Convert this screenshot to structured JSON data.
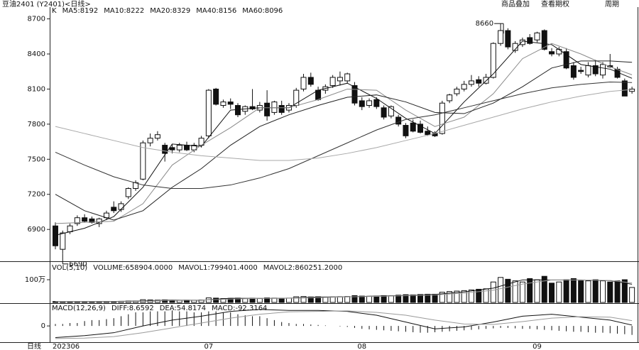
{
  "header": {
    "title": "豆油2401 (Y2401)<日线>",
    "buttons": [
      "商品叠加",
      "查看期权",
      "周期"
    ]
  },
  "period_label": "日线",
  "chart_data": [
    {
      "type": "candlestick",
      "label": "K",
      "categories": [
        "202306",
        null,
        null,
        null,
        null,
        null,
        null,
        null,
        null,
        null,
        null,
        null,
        null,
        null,
        null,
        null,
        null,
        null,
        null,
        null,
        null,
        "07",
        null,
        null,
        null,
        null,
        null,
        null,
        null,
        null,
        null,
        null,
        null,
        null,
        null,
        null,
        null,
        null,
        null,
        null,
        null,
        null,
        "08",
        null,
        null,
        null,
        null,
        null,
        null,
        null,
        null,
        null,
        null,
        null,
        null,
        null,
        null,
        null,
        null,
        null,
        null,
        null,
        null,
        null,
        null,
        null,
        "09",
        null,
        null,
        null,
        null,
        null,
        null,
        null,
        null,
        null,
        null,
        null,
        null,
        null
      ],
      "open": [
        6930,
        6730,
        6880,
        6950,
        7000,
        6990,
        6950,
        7000,
        7090,
        7070,
        7180,
        7250,
        7330,
        7640,
        7680,
        7620,
        7600,
        7580,
        7620,
        7580,
        7620,
        7700,
        8100,
        7960,
        7990,
        7960,
        7910,
        7950,
        7920,
        7980,
        7900,
        7960,
        7920,
        7960,
        8100,
        8200,
        8090,
        8090,
        8130,
        8170,
        8170,
        8130,
        8000,
        7960,
        8010,
        7940,
        7870,
        7860,
        7790,
        7810,
        7800,
        7740,
        7720,
        7720,
        8000,
        8060,
        8100,
        8140,
        8180,
        8150,
        8200,
        8490,
        8600,
        8430,
        8480,
        8540,
        8520,
        8600,
        8420,
        8400,
        8420,
        8300,
        8260,
        8220,
        8300,
        8220,
        8300,
        8270,
        8170,
        8080
      ],
      "high": [
        6960,
        6890,
        6950,
        7020,
        7030,
        7010,
        7000,
        7060,
        7140,
        7140,
        7260,
        7320,
        7660,
        7720,
        7740,
        7640,
        7630,
        7640,
        7650,
        7640,
        7700,
        8100,
        8110,
        8010,
        8020,
        7980,
        7960,
        8100,
        7990,
        8090,
        8000,
        8000,
        7980,
        8110,
        8230,
        8240,
        8120,
        8140,
        8220,
        8250,
        8240,
        8160,
        8030,
        8020,
        8030,
        7960,
        7960,
        7880,
        7810,
        7840,
        7830,
        7780,
        7740,
        8000,
        8060,
        8120,
        8170,
        8220,
        8210,
        8230,
        8500,
        8660,
        8620,
        8510,
        8540,
        8570,
        8590,
        8610,
        8450,
        8460,
        8450,
        8330,
        8290,
        8330,
        8350,
        8330,
        8400,
        8290,
        8190,
        8120
      ],
      "low": [
        6730,
        6690,
        6860,
        6930,
        6960,
        6950,
        6920,
        6980,
        7040,
        7050,
        7160,
        7230,
        7320,
        7610,
        7660,
        7480,
        7550,
        7560,
        7570,
        7560,
        7600,
        7680,
        7960,
        7940,
        7930,
        7860,
        7880,
        7920,
        7900,
        7830,
        7880,
        7880,
        7900,
        7940,
        8080,
        8120,
        8000,
        8060,
        8110,
        8130,
        8150,
        7960,
        7920,
        7940,
        7930,
        7840,
        7850,
        7780,
        7680,
        7730,
        7720,
        7700,
        7690,
        7710,
        7980,
        8040,
        8080,
        8120,
        8120,
        8140,
        8190,
        8470,
        8440,
        8410,
        8460,
        8480,
        8500,
        8430,
        8380,
        8380,
        8270,
        8180,
        8230,
        8200,
        8210,
        8190,
        8280,
        8190,
        8040,
        8060
      ],
      "close": [
        6760,
        6870,
        6930,
        7000,
        6970,
        6960,
        6990,
        7040,
        7060,
        7120,
        7250,
        7300,
        7640,
        7680,
        7710,
        7550,
        7580,
        7620,
        7580,
        7620,
        7680,
        8090,
        7970,
        7990,
        7970,
        7880,
        7950,
        7930,
        7960,
        7870,
        7990,
        7900,
        7960,
        8090,
        8200,
        8140,
        8010,
        8120,
        8200,
        8200,
        8230,
        7980,
        7950,
        8000,
        7950,
        7860,
        7950,
        7800,
        7700,
        7740,
        7730,
        7710,
        7700,
        7980,
        8050,
        8100,
        8140,
        8170,
        8150,
        8200,
        8490,
        8600,
        8460,
        8490,
        8520,
        8490,
        8580,
        8440,
        8400,
        8440,
        8280,
        8200,
        8250,
        8300,
        8230,
        8310,
        8290,
        8200,
        8040,
        8100
      ],
      "up_color": "#ffffff",
      "down_color": "#111111",
      "series": [
        {
          "name": "MA5:8192",
          "color": "#111111",
          "x": [
            0,
            4,
            8,
            12,
            16,
            20,
            24,
            28,
            32,
            36,
            40,
            44,
            48,
            52,
            56,
            60,
            64,
            68,
            72,
            76,
            79
          ],
          "values": [
            6850,
            6910,
            7010,
            7260,
            7630,
            7610,
            7920,
            7940,
            7940,
            8090,
            8150,
            8020,
            7850,
            7720,
            7990,
            8230,
            8510,
            8480,
            8310,
            8270,
            8192
          ]
        },
        {
          "name": "MA10:8222",
          "color": "#8a8a8a",
          "x": [
            0,
            4,
            8,
            12,
            16,
            20,
            24,
            28,
            32,
            36,
            40,
            44,
            48,
            52,
            56,
            60,
            64,
            68,
            72,
            76,
            79
          ],
          "values": [
            6950,
            6960,
            6970,
            7120,
            7450,
            7620,
            7770,
            7940,
            7940,
            8010,
            8100,
            8090,
            7920,
            7780,
            7860,
            8060,
            8360,
            8490,
            8400,
            8290,
            8222
          ]
        },
        {
          "name": "MA20:8329",
          "color": "#222222",
          "x": [
            0,
            4,
            8,
            12,
            16,
            20,
            24,
            28,
            32,
            36,
            40,
            44,
            48,
            52,
            56,
            60,
            64,
            68,
            72,
            76,
            79
          ],
          "values": [
            7200,
            7060,
            6980,
            7060,
            7260,
            7420,
            7620,
            7780,
            7880,
            7960,
            8030,
            8050,
            7990,
            7900,
            7890,
            7980,
            8120,
            8280,
            8340,
            8340,
            8329
          ]
        },
        {
          "name": "MA40:8156",
          "color": "#333333",
          "x": [
            0,
            4,
            8,
            12,
            16,
            20,
            24,
            28,
            32,
            36,
            40,
            44,
            48,
            52,
            56,
            60,
            64,
            68,
            72,
            76,
            79
          ],
          "values": [
            7560,
            7450,
            7350,
            7280,
            7250,
            7250,
            7280,
            7340,
            7420,
            7530,
            7640,
            7750,
            7840,
            7880,
            7940,
            8000,
            8060,
            8110,
            8140,
            8160,
            8156
          ]
        },
        {
          "name": "MA60:8096",
          "color": "#a8a8a8",
          "x": [
            0,
            4,
            8,
            12,
            16,
            20,
            24,
            28,
            32,
            36,
            40,
            44,
            48,
            52,
            56,
            60,
            64,
            68,
            72,
            76,
            79
          ],
          "values": [
            7780,
            7720,
            7660,
            7600,
            7560,
            7530,
            7510,
            7490,
            7490,
            7510,
            7550,
            7600,
            7660,
            7720,
            7790,
            7860,
            7930,
            7990,
            8040,
            8080,
            8096
          ]
        }
      ],
      "annotations": [
        "8660",
        "6690"
      ],
      "ylim": [
        6640,
        8740
      ],
      "yticks": [
        6900,
        7200,
        7500,
        7800,
        8100,
        8400,
        8700
      ]
    },
    {
      "type": "bar",
      "label": "VOL(5,10)",
      "name": "VOLUME:658904.0000",
      "color": "#111111",
      "values": [
        40000,
        40000,
        35000,
        40000,
        35000,
        35000,
        40000,
        45000,
        45000,
        50000,
        60000,
        60000,
        120000,
        110000,
        100000,
        110000,
        90000,
        90000,
        100000,
        95000,
        110000,
        200000,
        190000,
        170000,
        180000,
        190000,
        170000,
        180000,
        170000,
        200000,
        190000,
        180000,
        190000,
        250000,
        260000,
        240000,
        250000,
        230000,
        240000,
        250000,
        260000,
        300000,
        280000,
        270000,
        280000,
        300000,
        290000,
        320000,
        340000,
        330000,
        350000,
        360000,
        360000,
        450000,
        480000,
        500000,
        520000,
        550000,
        580000,
        600000,
        900000,
        1100000,
        1020000,
        950000,
        900000,
        1050000,
        1000000,
        1150000,
        850000,
        900000,
        1000000,
        1050000,
        950000,
        950000,
        1000000,
        950000,
        900000,
        950000,
        1000000,
        658904
      ],
      "series": [
        {
          "name": "MAVOL1:799401.4000",
          "color": "#111111",
          "x": [
            0,
            4,
            8,
            12,
            16,
            20,
            24,
            28,
            32,
            36,
            40,
            44,
            48,
            52,
            56,
            60,
            64,
            68,
            72,
            76,
            79
          ],
          "values": [
            40000,
            38000,
            43000,
            67000,
            106000,
            97000,
            182000,
            178000,
            186000,
            238000,
            246000,
            282000,
            306000,
            350000,
            466000,
            630000,
            994000,
            990000,
            990000,
            960000,
            799401.4
          ]
        },
        {
          "name": "MAVOL2:860251.2000",
          "color": "#999999",
          "x": [
            0,
            4,
            8,
            12,
            16,
            20,
            24,
            28,
            32,
            36,
            40,
            44,
            48,
            52,
            56,
            60,
            64,
            68,
            72,
            76,
            79
          ],
          "values": [
            45000,
            40000,
            40000,
            55000,
            90000,
            101000,
            150000,
            180000,
            182000,
            210000,
            245000,
            265000,
            295000,
            330000,
            410000,
            540000,
            810000,
            990000,
            990000,
            970000,
            860251.2
          ]
        }
      ],
      "ylim": [
        0,
        1750000
      ],
      "yticks": [
        {
          "value": 1000000,
          "label": "100万"
        }
      ]
    },
    {
      "type": "macd",
      "label": "MACD(12,26,9)",
      "name": "MACD:-92.3164",
      "color": "#111111",
      "values": [
        20,
        20,
        30,
        30,
        50,
        60,
        60,
        70,
        80,
        100,
        120,
        140,
        140,
        150,
        150,
        150,
        160,
        150,
        150,
        140,
        140,
        150,
        150,
        140,
        140,
        120,
        110,
        100,
        100,
        80,
        60,
        40,
        30,
        20,
        20,
        15,
        10,
        5,
        0,
        -5,
        -10,
        -20,
        -30,
        -35,
        -40,
        -45,
        -50,
        -55,
        -60,
        -65,
        -70,
        -70,
        -65,
        -60,
        -55,
        -50,
        -45,
        -40,
        -35,
        -30,
        -25,
        -20,
        -20,
        -25,
        -30,
        -30,
        -35,
        -40,
        -45,
        -50,
        -55,
        -60,
        -60,
        -65,
        -70,
        -70,
        -75,
        -80,
        -85,
        -92.3164
      ],
      "series": [
        {
          "name": "DIFF:8.6592",
          "color": "#111111",
          "x": [
            0,
            4,
            8,
            12,
            16,
            20,
            24,
            28,
            32,
            36,
            40,
            44,
            48,
            52,
            56,
            60,
            64,
            68,
            72,
            76,
            79
          ],
          "values": [
            -120,
            -100,
            -70,
            0,
            60,
            100,
            150,
            170,
            160,
            160,
            150,
            110,
            40,
            -30,
            -10,
            40,
            100,
            120,
            90,
            60,
            8.6592
          ]
        },
        {
          "name": "DEA:54.8174",
          "color": "#9a9a9a",
          "x": [
            0,
            4,
            8,
            12,
            16,
            20,
            24,
            28,
            32,
            36,
            40,
            44,
            48,
            52,
            56,
            60,
            64,
            68,
            72,
            76,
            79
          ],
          "values": [
            -130,
            -125,
            -110,
            -70,
            -20,
            30,
            80,
            120,
            145,
            150,
            155,
            140,
            110,
            60,
            20,
            15,
            45,
            80,
            95,
            90,
            54.8174
          ]
        }
      ],
      "ylim": [
        -160,
        220
      ],
      "yticks": [
        0
      ]
    }
  ]
}
